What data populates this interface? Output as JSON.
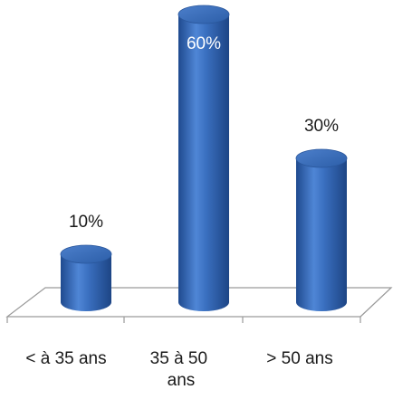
{
  "chart_data": {
    "type": "bar",
    "style": "3d-cylinder",
    "categories": [
      "< à 35 ans",
      "35 à 50 ans",
      "> 50 ans"
    ],
    "values": [
      10,
      60,
      30
    ],
    "data_labels": [
      "10%",
      "60%",
      "30%"
    ],
    "title": "",
    "xlabel": "",
    "ylabel": "",
    "ylim": [
      0,
      60
    ],
    "grid": false,
    "legend": false,
    "colors": {
      "bar": "#3a6fbf",
      "bar_dark": "#1f4a8f",
      "bar_light": "#7fa8e0",
      "floor": "#9a9a9a",
      "label_outside": "#1a1a1a",
      "label_inside": "#ffffff"
    }
  }
}
